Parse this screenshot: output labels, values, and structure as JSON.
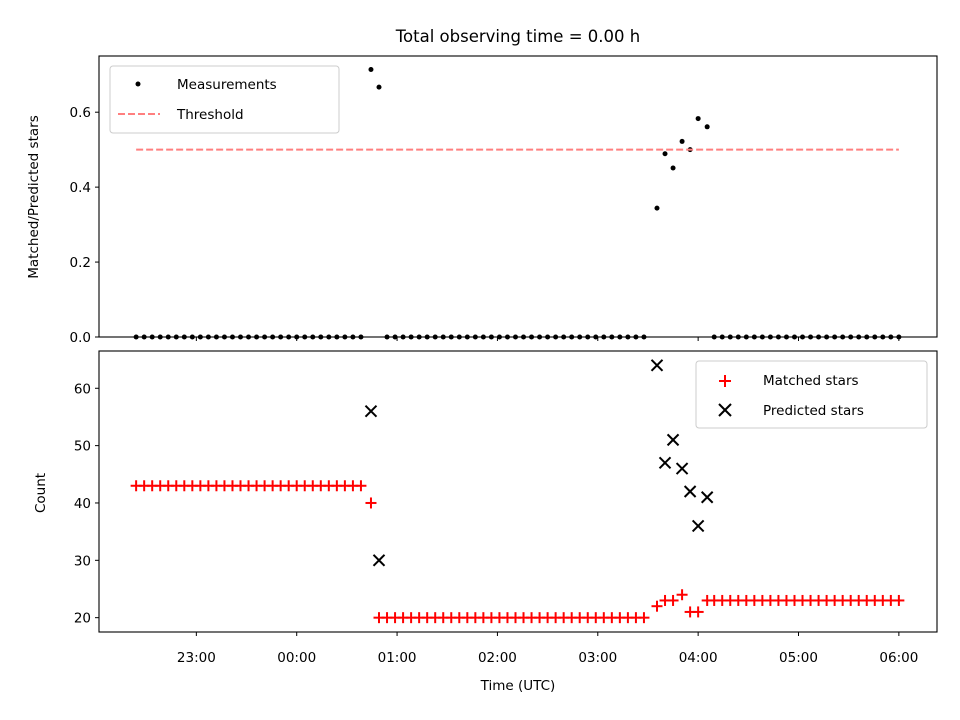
{
  "chart_data": {
    "title": "Total observing time = 0.00 h",
    "xlabel": "Time (UTC)",
    "x_unit": "UTC time, hours relative to 00:00 (negative = previous day)",
    "x_ticks": [
      {
        "value": -1,
        "label": "23:00"
      },
      {
        "value": 0,
        "label": "00:00"
      },
      {
        "value": 1,
        "label": "01:00"
      },
      {
        "value": 2,
        "label": "02:00"
      },
      {
        "value": 3,
        "label": "03:00"
      },
      {
        "value": 4,
        "label": "04:00"
      },
      {
        "value": 5,
        "label": "05:00"
      },
      {
        "value": 6,
        "label": "06:00"
      }
    ],
    "xlim": [
      -1.97,
      6.38
    ],
    "panels": [
      {
        "type": "scatter",
        "ylabel": "Matched/Predicted stars",
        "ylim": [
          0,
          0.75
        ],
        "y_ticks": [
          {
            "value": 0.0,
            "label": "0.0"
          },
          {
            "value": 0.2,
            "label": "0.2"
          },
          {
            "value": 0.4,
            "label": "0.4"
          },
          {
            "value": 0.6,
            "label": "0.6"
          }
        ],
        "legend": {
          "position": "upper left",
          "entries": [
            {
              "label": "Measurements",
              "marker": "dot",
              "color": "#000000"
            },
            {
              "label": "Threshold",
              "marker": "dashed-line",
              "color": "#ff7f7f"
            }
          ]
        },
        "series": [
          {
            "name": "Measurements",
            "marker": "dot",
            "color": "#000000",
            "points": [
              [
                -1.6,
                0
              ],
              [
                -1.52,
                0
              ],
              [
                -1.44,
                0
              ],
              [
                -1.36,
                0
              ],
              [
                -1.28,
                0
              ],
              [
                -1.2,
                0
              ],
              [
                -1.12,
                0
              ],
              [
                -1.04,
                0
              ],
              [
                -0.96,
                0
              ],
              [
                -0.88,
                0
              ],
              [
                -0.8,
                0
              ],
              [
                -0.72,
                0
              ],
              [
                -0.64,
                0
              ],
              [
                -0.56,
                0
              ],
              [
                -0.48,
                0
              ],
              [
                -0.4,
                0
              ],
              [
                -0.32,
                0
              ],
              [
                -0.24,
                0
              ],
              [
                -0.16,
                0
              ],
              [
                -0.08,
                0
              ],
              [
                0.0,
                0
              ],
              [
                0.08,
                0
              ],
              [
                0.16,
                0
              ],
              [
                0.24,
                0
              ],
              [
                0.32,
                0
              ],
              [
                0.4,
                0
              ],
              [
                0.48,
                0
              ],
              [
                0.56,
                0
              ],
              [
                0.64,
                0
              ],
              [
                0.74,
                0.714
              ],
              [
                0.82,
                0.667
              ],
              [
                0.9,
                0
              ],
              [
                0.98,
                0
              ],
              [
                1.06,
                0
              ],
              [
                1.14,
                0
              ],
              [
                1.22,
                0
              ],
              [
                1.3,
                0
              ],
              [
                1.38,
                0
              ],
              [
                1.46,
                0
              ],
              [
                1.54,
                0
              ],
              [
                1.62,
                0
              ],
              [
                1.7,
                0
              ],
              [
                1.78,
                0
              ],
              [
                1.86,
                0
              ],
              [
                1.94,
                0
              ],
              [
                2.02,
                0
              ],
              [
                2.1,
                0
              ],
              [
                2.18,
                0
              ],
              [
                2.26,
                0
              ],
              [
                2.34,
                0
              ],
              [
                2.42,
                0
              ],
              [
                2.5,
                0
              ],
              [
                2.58,
                0
              ],
              [
                2.66,
                0
              ],
              [
                2.74,
                0
              ],
              [
                2.82,
                0
              ],
              [
                2.9,
                0
              ],
              [
                2.98,
                0
              ],
              [
                3.06,
                0
              ],
              [
                3.14,
                0
              ],
              [
                3.22,
                0
              ],
              [
                3.3,
                0
              ],
              [
                3.38,
                0
              ],
              [
                3.46,
                0
              ],
              [
                3.59,
                0.344
              ],
              [
                3.67,
                0.489
              ],
              [
                3.75,
                0.451
              ],
              [
                3.84,
                0.522
              ],
              [
                3.92,
                0.5
              ],
              [
                4.0,
                0.583
              ],
              [
                4.09,
                0.561
              ],
              [
                4.16,
                0
              ],
              [
                4.24,
                0
              ],
              [
                4.32,
                0
              ],
              [
                4.4,
                0
              ],
              [
                4.48,
                0
              ],
              [
                4.56,
                0
              ],
              [
                4.64,
                0
              ],
              [
                4.72,
                0
              ],
              [
                4.8,
                0
              ],
              [
                4.88,
                0
              ],
              [
                4.96,
                0
              ],
              [
                5.04,
                0
              ],
              [
                5.12,
                0
              ],
              [
                5.2,
                0
              ],
              [
                5.28,
                0
              ],
              [
                5.36,
                0
              ],
              [
                5.44,
                0
              ],
              [
                5.52,
                0
              ],
              [
                5.6,
                0
              ],
              [
                5.68,
                0
              ],
              [
                5.76,
                0
              ],
              [
                5.84,
                0
              ],
              [
                5.92,
                0
              ],
              [
                6.0,
                0
              ]
            ]
          },
          {
            "name": "Threshold",
            "type": "line",
            "style": "dashed",
            "color": "#ff7f7f",
            "x": [
              -1.6,
              6.0
            ],
            "y": [
              0.5,
              0.5
            ]
          }
        ]
      },
      {
        "type": "scatter",
        "ylabel": "Count",
        "ylim": [
          17.5,
          66.5
        ],
        "y_ticks": [
          {
            "value": 20,
            "label": "20"
          },
          {
            "value": 30,
            "label": "30"
          },
          {
            "value": 40,
            "label": "40"
          },
          {
            "value": 50,
            "label": "50"
          },
          {
            "value": 60,
            "label": "60"
          }
        ],
        "legend": {
          "position": "upper right",
          "entries": [
            {
              "label": "Matched stars",
              "marker": "plus",
              "color": "#ff0000"
            },
            {
              "label": "Predicted stars",
              "marker": "cross",
              "color": "#000000"
            }
          ]
        },
        "series": [
          {
            "name": "Matched stars",
            "marker": "plus",
            "color": "#ff0000",
            "points": [
              [
                -1.6,
                43
              ],
              [
                -1.52,
                43
              ],
              [
                -1.44,
                43
              ],
              [
                -1.36,
                43
              ],
              [
                -1.28,
                43
              ],
              [
                -1.2,
                43
              ],
              [
                -1.12,
                43
              ],
              [
                -1.04,
                43
              ],
              [
                -0.96,
                43
              ],
              [
                -0.88,
                43
              ],
              [
                -0.8,
                43
              ],
              [
                -0.72,
                43
              ],
              [
                -0.64,
                43
              ],
              [
                -0.56,
                43
              ],
              [
                -0.48,
                43
              ],
              [
                -0.4,
                43
              ],
              [
                -0.32,
                43
              ],
              [
                -0.24,
                43
              ],
              [
                -0.16,
                43
              ],
              [
                -0.08,
                43
              ],
              [
                0.0,
                43
              ],
              [
                0.08,
                43
              ],
              [
                0.16,
                43
              ],
              [
                0.24,
                43
              ],
              [
                0.32,
                43
              ],
              [
                0.4,
                43
              ],
              [
                0.48,
                43
              ],
              [
                0.56,
                43
              ],
              [
                0.64,
                43
              ],
              [
                0.74,
                40
              ],
              [
                0.82,
                20
              ],
              [
                0.9,
                20
              ],
              [
                0.98,
                20
              ],
              [
                1.06,
                20
              ],
              [
                1.14,
                20
              ],
              [
                1.22,
                20
              ],
              [
                1.3,
                20
              ],
              [
                1.38,
                20
              ],
              [
                1.46,
                20
              ],
              [
                1.54,
                20
              ],
              [
                1.62,
                20
              ],
              [
                1.7,
                20
              ],
              [
                1.78,
                20
              ],
              [
                1.86,
                20
              ],
              [
                1.94,
                20
              ],
              [
                2.02,
                20
              ],
              [
                2.1,
                20
              ],
              [
                2.18,
                20
              ],
              [
                2.26,
                20
              ],
              [
                2.34,
                20
              ],
              [
                2.42,
                20
              ],
              [
                2.5,
                20
              ],
              [
                2.58,
                20
              ],
              [
                2.66,
                20
              ],
              [
                2.74,
                20
              ],
              [
                2.82,
                20
              ],
              [
                2.9,
                20
              ],
              [
                2.98,
                20
              ],
              [
                3.06,
                20
              ],
              [
                3.14,
                20
              ],
              [
                3.22,
                20
              ],
              [
                3.3,
                20
              ],
              [
                3.38,
                20
              ],
              [
                3.46,
                20
              ],
              [
                3.59,
                22
              ],
              [
                3.67,
                23
              ],
              [
                3.75,
                23
              ],
              [
                3.84,
                24
              ],
              [
                3.92,
                21
              ],
              [
                4.0,
                21
              ],
              [
                4.09,
                23
              ],
              [
                4.16,
                23
              ],
              [
                4.24,
                23
              ],
              [
                4.32,
                23
              ],
              [
                4.4,
                23
              ],
              [
                4.48,
                23
              ],
              [
                4.56,
                23
              ],
              [
                4.64,
                23
              ],
              [
                4.72,
                23
              ],
              [
                4.8,
                23
              ],
              [
                4.88,
                23
              ],
              [
                4.96,
                23
              ],
              [
                5.04,
                23
              ],
              [
                5.12,
                23
              ],
              [
                5.2,
                23
              ],
              [
                5.28,
                23
              ],
              [
                5.36,
                23
              ],
              [
                5.44,
                23
              ],
              [
                5.52,
                23
              ],
              [
                5.6,
                23
              ],
              [
                5.68,
                23
              ],
              [
                5.76,
                23
              ],
              [
                5.84,
                23
              ],
              [
                5.92,
                23
              ],
              [
                6.0,
                23
              ]
            ]
          },
          {
            "name": "Predicted stars",
            "marker": "cross",
            "color": "#000000",
            "points": [
              [
                0.74,
                56
              ],
              [
                0.82,
                30
              ],
              [
                3.59,
                64
              ],
              [
                3.67,
                47
              ],
              [
                3.75,
                51
              ],
              [
                3.84,
                46
              ],
              [
                3.92,
                42
              ],
              [
                4.0,
                36
              ],
              [
                4.09,
                41
              ]
            ]
          }
        ]
      }
    ]
  }
}
